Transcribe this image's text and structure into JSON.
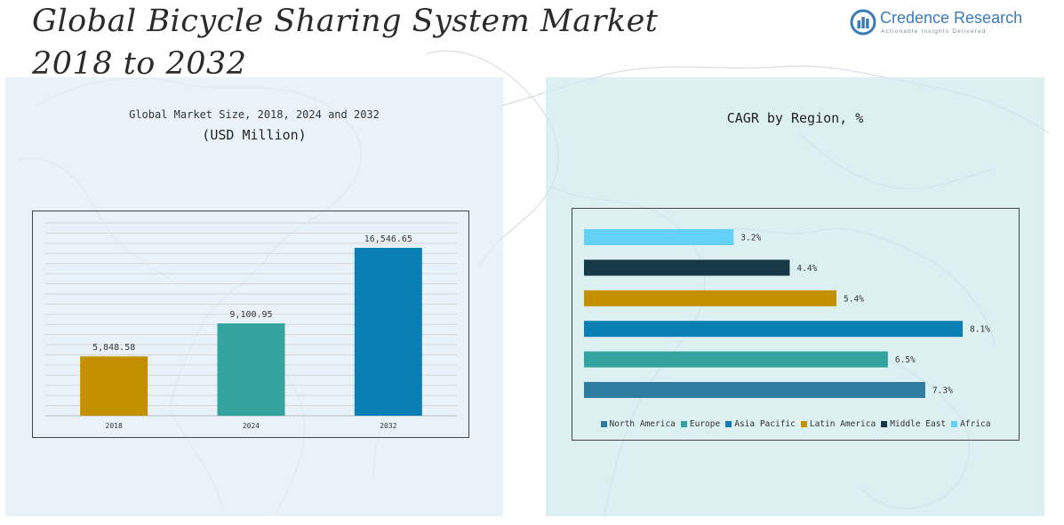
{
  "header": {
    "title_line1": "Global Bicycle Sharing System Market",
    "title_line2": "2018 to 2032"
  },
  "logo": {
    "name": "Credence Research",
    "tagline": "Actionable Insights Delivered",
    "icon": "bar-chart-circle-icon",
    "color": "#3a7cb8"
  },
  "left_panel": {
    "subtitle": "Global Market Size, 2018, 2024 and 2032",
    "unit": "(USD Million)"
  },
  "right_panel": {
    "title": "CAGR by Region, %"
  },
  "chart_data": [
    {
      "type": "bar",
      "title": "Global Market Size, 2018, 2024 and 2032",
      "ylabel": "(USD Million)",
      "categories": [
        "2018",
        "2024",
        "2032"
      ],
      "values": [
        5848.58,
        9100.95,
        16546.65
      ],
      "value_labels": [
        "5,848.58",
        "9,100.95",
        "16,546.65"
      ],
      "colors": [
        "#c49000",
        "#33a3a0",
        "#0a7fb3"
      ],
      "ylim": [
        0,
        19000
      ],
      "grid": true,
      "legend": false
    },
    {
      "type": "bar",
      "orientation": "horizontal",
      "title": "CAGR by Region, %",
      "series": [
        {
          "name": "North America",
          "value": 7.3,
          "label": "7.3%",
          "color": "#2e7ca0"
        },
        {
          "name": "Europe",
          "value": 6.5,
          "label": "6.5%",
          "color": "#33a3a0"
        },
        {
          "name": "Asia Pacific",
          "value": 8.1,
          "label": "8.1%",
          "color": "#0a7fb3"
        },
        {
          "name": "Latin America",
          "value": 5.4,
          "label": "5.4%",
          "color": "#c49000"
        },
        {
          "name": "Middle East",
          "value": 4.4,
          "label": "4.4%",
          "color": "#173947"
        },
        {
          "name": "Africa",
          "value": 3.2,
          "label": "3.2%",
          "color": "#63d0f5"
        }
      ],
      "xlim": [
        0,
        8.1
      ],
      "grid": false,
      "legend": "bottom"
    }
  ]
}
